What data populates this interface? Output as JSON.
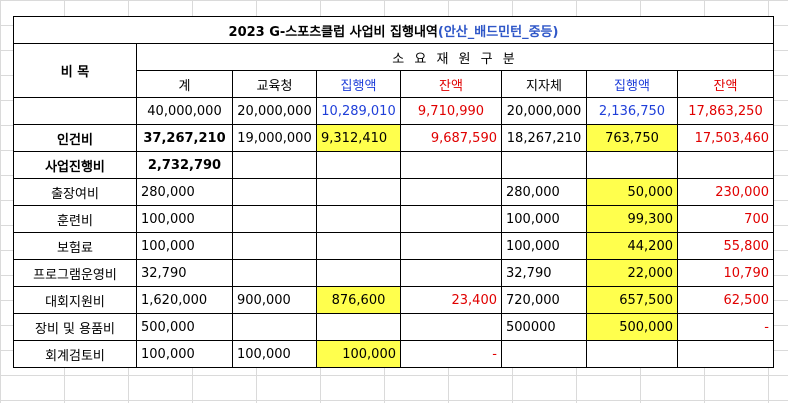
{
  "sheet": {
    "title": "2023 G-스포츠클럽 사업비 집행내역",
    "subtitle": "(안산_배드민턴_중등)",
    "header": {
      "item_label": "비 목",
      "group_label": "소 요 재 원 구 분",
      "columns": [
        "계",
        "교육청",
        "집행액",
        "잔액",
        "지자체",
        "집행액",
        "잔액"
      ]
    },
    "budget_row": [
      "40,000,000",
      "20,000,000",
      "10,289,010",
      "9,710,990",
      "20,000,000",
      "2,136,750",
      "17,863,250"
    ],
    "rows": [
      {
        "name": "인건비",
        "values": [
          "37,267,210",
          "19,000,000",
          "9,312,410",
          "9,687,590",
          "18,267,210",
          "763,750",
          "17,503,460"
        ]
      },
      {
        "name": "사업진행비",
        "values": [
          "2,732,790",
          "",
          "",
          "",
          "",
          "",
          ""
        ]
      },
      {
        "name": "출장여비",
        "values": [
          "280,000",
          "",
          "",
          "",
          "280,000",
          "50,000",
          "230,000"
        ]
      },
      {
        "name": "훈련비",
        "values": [
          "100,000",
          "",
          "",
          "",
          "100,000",
          "99,300",
          "700"
        ]
      },
      {
        "name": "보험료",
        "values": [
          "100,000",
          "",
          "",
          "",
          "100,000",
          "44,200",
          "55,800"
        ]
      },
      {
        "name": "프로그램운영비",
        "values": [
          "32,790",
          "",
          "",
          "",
          "32,790",
          "22,000",
          "10,790"
        ]
      },
      {
        "name": "대회지원비",
        "values": [
          "1,620,000",
          "900,000",
          "876,600",
          "23,400",
          "720,000",
          "657,500",
          "62,500"
        ]
      },
      {
        "name": "장비 및 용품비",
        "values": [
          "500,000",
          "",
          "",
          "",
          "500000",
          "500,000",
          "-"
        ]
      },
      {
        "name": "회계검토비",
        "values": [
          "100,000",
          "100,000",
          "100,000",
          "-",
          "",
          "",
          ""
        ]
      }
    ],
    "colors": {
      "highlight": "#ffff4d",
      "executed_header": "#1f3fd9",
      "balance": "#e00000"
    }
  }
}
